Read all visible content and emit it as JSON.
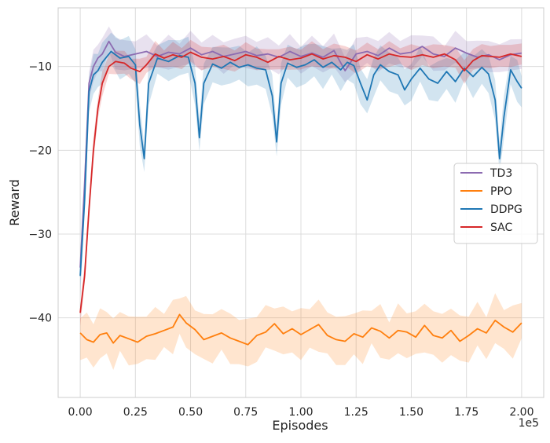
{
  "chart_data": {
    "type": "line",
    "title": "",
    "xlabel": "Episodes",
    "ylabel": "Reward",
    "x_offset_label": "1e5",
    "xlim": [
      -0.1,
      2.1
    ],
    "ylim": [
      -49.5,
      -3.0
    ],
    "x_ticks": [
      0.0,
      0.25,
      0.5,
      0.75,
      1.0,
      1.25,
      1.5,
      1.75,
      2.0
    ],
    "x_tick_labels": [
      "0.00",
      "0.25",
      "0.50",
      "0.75",
      "1.00",
      "1.25",
      "1.50",
      "1.75",
      "2.00"
    ],
    "y_ticks": [
      -40,
      -30,
      -20,
      -10
    ],
    "y_tick_labels": [
      "−40",
      "−30",
      "−20",
      "−10"
    ],
    "grid": true,
    "legend_position": "center-right",
    "series": [
      {
        "name": "TD3",
        "color": "#8c6bb1",
        "band": 1.6,
        "points": [
          [
            0.0,
            -34
          ],
          [
            0.02,
            -24
          ],
          [
            0.04,
            -12
          ],
          [
            0.06,
            -10
          ],
          [
            0.08,
            -9
          ],
          [
            0.1,
            -8.5
          ],
          [
            0.13,
            -7
          ],
          [
            0.16,
            -8.3
          ],
          [
            0.2,
            -8.8
          ],
          [
            0.25,
            -8.5
          ],
          [
            0.3,
            -8.2
          ],
          [
            0.35,
            -8.8
          ],
          [
            0.4,
            -8.3
          ],
          [
            0.45,
            -8.5
          ],
          [
            0.5,
            -7.8
          ],
          [
            0.55,
            -8.6
          ],
          [
            0.6,
            -8.2
          ],
          [
            0.65,
            -8.8
          ],
          [
            0.7,
            -8.5
          ],
          [
            0.75,
            -8.2
          ],
          [
            0.8,
            -8.7
          ],
          [
            0.85,
            -8.5
          ],
          [
            0.9,
            -8.9
          ],
          [
            0.95,
            -8.2
          ],
          [
            1.0,
            -8.8
          ],
          [
            1.05,
            -8.4
          ],
          [
            1.1,
            -8.9
          ],
          [
            1.15,
            -8.1
          ],
          [
            1.2,
            -10.5
          ],
          [
            1.25,
            -8.5
          ],
          [
            1.3,
            -8.2
          ],
          [
            1.35,
            -8.7
          ],
          [
            1.4,
            -7.8
          ],
          [
            1.45,
            -8.5
          ],
          [
            1.5,
            -8.3
          ],
          [
            1.55,
            -7.6
          ],
          [
            1.6,
            -8.5
          ],
          [
            1.65,
            -8.8
          ],
          [
            1.7,
            -7.8
          ],
          [
            1.75,
            -8.4
          ],
          [
            1.8,
            -8.9
          ],
          [
            1.85,
            -8.6
          ],
          [
            1.9,
            -9.2
          ],
          [
            1.95,
            -8.6
          ],
          [
            2.0,
            -8.4
          ]
        ]
      },
      {
        "name": "PPO",
        "color": "#ff7f0e",
        "band": 2.5,
        "points": [
          [
            0.0,
            -41.8
          ],
          [
            0.03,
            -42.6
          ],
          [
            0.06,
            -42.9
          ],
          [
            0.09,
            -42.0
          ],
          [
            0.12,
            -41.8
          ],
          [
            0.15,
            -43.0
          ],
          [
            0.18,
            -42.1
          ],
          [
            0.22,
            -42.5
          ],
          [
            0.26,
            -42.9
          ],
          [
            0.3,
            -42.2
          ],
          [
            0.34,
            -41.9
          ],
          [
            0.38,
            -41.5
          ],
          [
            0.42,
            -41.1
          ],
          [
            0.45,
            -39.6
          ],
          [
            0.48,
            -40.6
          ],
          [
            0.52,
            -41.4
          ],
          [
            0.56,
            -42.6
          ],
          [
            0.6,
            -42.2
          ],
          [
            0.64,
            -41.8
          ],
          [
            0.68,
            -42.4
          ],
          [
            0.72,
            -42.8
          ],
          [
            0.76,
            -43.2
          ],
          [
            0.8,
            -42.1
          ],
          [
            0.84,
            -41.7
          ],
          [
            0.88,
            -40.7
          ],
          [
            0.92,
            -41.9
          ],
          [
            0.96,
            -41.3
          ],
          [
            1.0,
            -42.0
          ],
          [
            1.04,
            -41.4
          ],
          [
            1.08,
            -40.8
          ],
          [
            1.12,
            -42.1
          ],
          [
            1.16,
            -42.6
          ],
          [
            1.2,
            -42.8
          ],
          [
            1.24,
            -41.9
          ],
          [
            1.28,
            -42.3
          ],
          [
            1.32,
            -41.2
          ],
          [
            1.36,
            -41.6
          ],
          [
            1.4,
            -42.4
          ],
          [
            1.44,
            -41.5
          ],
          [
            1.48,
            -41.7
          ],
          [
            1.52,
            -42.3
          ],
          [
            1.56,
            -40.9
          ],
          [
            1.6,
            -42.1
          ],
          [
            1.64,
            -42.4
          ],
          [
            1.68,
            -41.5
          ],
          [
            1.72,
            -42.8
          ],
          [
            1.76,
            -42.1
          ],
          [
            1.8,
            -41.3
          ],
          [
            1.84,
            -41.8
          ],
          [
            1.88,
            -40.3
          ],
          [
            1.92,
            -41.1
          ],
          [
            1.96,
            -41.7
          ],
          [
            2.0,
            -40.6
          ]
        ]
      },
      {
        "name": "DDPG",
        "color": "#1f77b4",
        "band": 2.0,
        "points": [
          [
            0.0,
            -35
          ],
          [
            0.02,
            -26
          ],
          [
            0.04,
            -13
          ],
          [
            0.06,
            -11
          ],
          [
            0.08,
            -10.5
          ],
          [
            0.1,
            -9.5
          ],
          [
            0.14,
            -8.2
          ],
          [
            0.18,
            -9.0
          ],
          [
            0.22,
            -8.8
          ],
          [
            0.25,
            -9.8
          ],
          [
            0.27,
            -17
          ],
          [
            0.29,
            -21
          ],
          [
            0.31,
            -12
          ],
          [
            0.35,
            -9.0
          ],
          [
            0.4,
            -9.4
          ],
          [
            0.45,
            -8.7
          ],
          [
            0.49,
            -8.9
          ],
          [
            0.52,
            -12
          ],
          [
            0.54,
            -18.5
          ],
          [
            0.56,
            -12
          ],
          [
            0.6,
            -9.7
          ],
          [
            0.64,
            -10.2
          ],
          [
            0.68,
            -9.5
          ],
          [
            0.72,
            -10.1
          ],
          [
            0.76,
            -9.8
          ],
          [
            0.8,
            -10.2
          ],
          [
            0.84,
            -10.4
          ],
          [
            0.87,
            -13.5
          ],
          [
            0.89,
            -19
          ],
          [
            0.91,
            -12
          ],
          [
            0.94,
            -9.6
          ],
          [
            0.98,
            -10.1
          ],
          [
            1.02,
            -9.8
          ],
          [
            1.06,
            -9.2
          ],
          [
            1.1,
            -10.1
          ],
          [
            1.14,
            -9.5
          ],
          [
            1.18,
            -10.4
          ],
          [
            1.21,
            -9.5
          ],
          [
            1.24,
            -9.9
          ],
          [
            1.27,
            -12
          ],
          [
            1.3,
            -14
          ],
          [
            1.33,
            -11
          ],
          [
            1.36,
            -9.8
          ],
          [
            1.4,
            -10.6
          ],
          [
            1.44,
            -11
          ],
          [
            1.47,
            -12.8
          ],
          [
            1.5,
            -11.5
          ],
          [
            1.54,
            -10.2
          ],
          [
            1.58,
            -11.5
          ],
          [
            1.62,
            -12.0
          ],
          [
            1.66,
            -10.6
          ],
          [
            1.7,
            -11.8
          ],
          [
            1.74,
            -10.2
          ],
          [
            1.78,
            -11.2
          ],
          [
            1.82,
            -10.1
          ],
          [
            1.85,
            -10.9
          ],
          [
            1.88,
            -14
          ],
          [
            1.9,
            -21
          ],
          [
            1.92,
            -16
          ],
          [
            1.95,
            -10.4
          ],
          [
            1.98,
            -11.8
          ],
          [
            2.0,
            -12.6
          ]
        ]
      },
      {
        "name": "SAC",
        "color": "#d62728",
        "band": 1.2,
        "points": [
          [
            0.0,
            -39.4
          ],
          [
            0.02,
            -35
          ],
          [
            0.04,
            -27
          ],
          [
            0.06,
            -20
          ],
          [
            0.08,
            -15
          ],
          [
            0.1,
            -12
          ],
          [
            0.13,
            -10.0
          ],
          [
            0.16,
            -9.4
          ],
          [
            0.2,
            -9.6
          ],
          [
            0.23,
            -10.2
          ],
          [
            0.27,
            -10.6
          ],
          [
            0.3,
            -9.8
          ],
          [
            0.34,
            -8.5
          ],
          [
            0.38,
            -9.0
          ],
          [
            0.42,
            -8.6
          ],
          [
            0.46,
            -8.9
          ],
          [
            0.5,
            -8.3
          ],
          [
            0.55,
            -8.9
          ],
          [
            0.6,
            -9.1
          ],
          [
            0.65,
            -8.8
          ],
          [
            0.7,
            -9.3
          ],
          [
            0.75,
            -8.6
          ],
          [
            0.8,
            -8.9
          ],
          [
            0.85,
            -9.5
          ],
          [
            0.9,
            -8.8
          ],
          [
            0.95,
            -9.2
          ],
          [
            1.0,
            -9.0
          ],
          [
            1.05,
            -8.5
          ],
          [
            1.1,
            -9.1
          ],
          [
            1.15,
            -8.7
          ],
          [
            1.2,
            -8.9
          ],
          [
            1.25,
            -9.4
          ],
          [
            1.3,
            -8.6
          ],
          [
            1.35,
            -9.1
          ],
          [
            1.4,
            -8.5
          ],
          [
            1.45,
            -8.8
          ],
          [
            1.5,
            -8.9
          ],
          [
            1.55,
            -8.6
          ],
          [
            1.6,
            -8.9
          ],
          [
            1.65,
            -8.5
          ],
          [
            1.7,
            -9.2
          ],
          [
            1.74,
            -10.5
          ],
          [
            1.78,
            -9.3
          ],
          [
            1.82,
            -8.7
          ],
          [
            1.86,
            -8.8
          ],
          [
            1.9,
            -8.9
          ],
          [
            1.95,
            -8.5
          ],
          [
            2.0,
            -8.8
          ]
        ]
      }
    ]
  }
}
